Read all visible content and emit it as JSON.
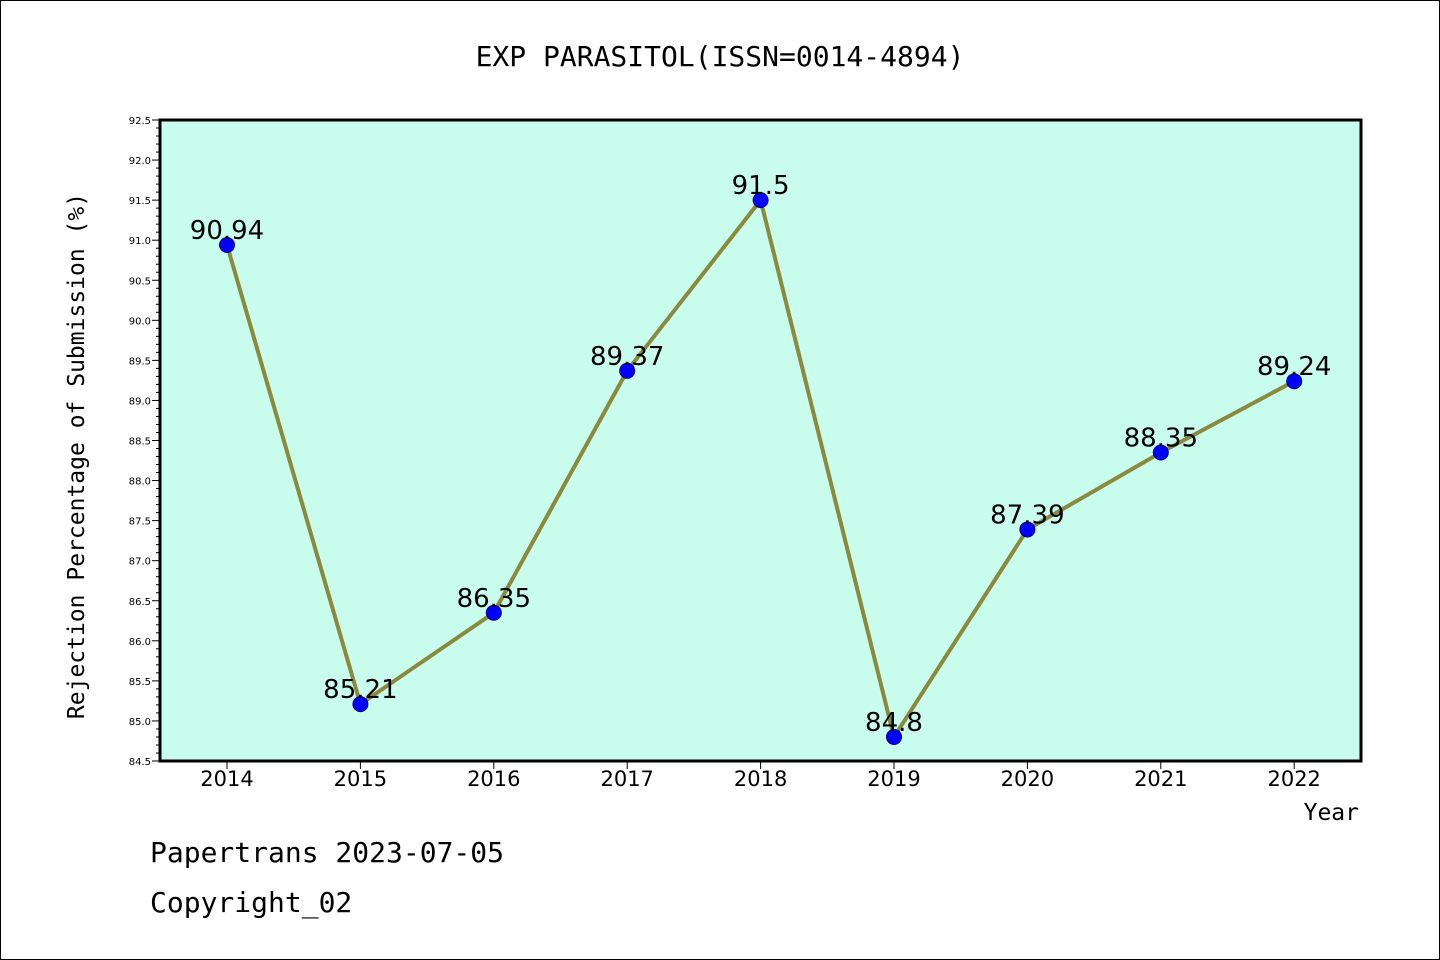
{
  "chart_data": {
    "type": "line",
    "title": "EXP PARASITOL(ISSN=0014-4894)",
    "xlabel": "Year",
    "ylabel": "Rejection Percentage of Submission (%)",
    "categories": [
      "2014",
      "2015",
      "2016",
      "2017",
      "2018",
      "2019",
      "2020",
      "2021",
      "2022"
    ],
    "values": [
      90.94,
      85.21,
      86.35,
      89.37,
      91.5,
      84.8,
      87.39,
      88.35,
      89.24
    ],
    "data_labels": [
      "90.94",
      "85.21",
      "86.35",
      "89.37",
      "91.5",
      "84.8",
      "87.39",
      "88.35",
      "89.24"
    ],
    "ylim": [
      84.5,
      92.5
    ],
    "yticks": [
      "84.5",
      "85.0",
      "85.5",
      "86.0",
      "86.5",
      "87.0",
      "87.5",
      "88.0",
      "88.5",
      "89.0",
      "89.5",
      "90.0",
      "90.5",
      "91.0",
      "91.5",
      "92.0",
      "92.5"
    ],
    "grid": false,
    "colors": {
      "plot_background": "#c8fcec",
      "line": "#8b8a3c",
      "marker": "#0000ff"
    }
  },
  "footer": {
    "source": "Papertrans 2023-07-05",
    "copyright": "Copyright_02"
  }
}
